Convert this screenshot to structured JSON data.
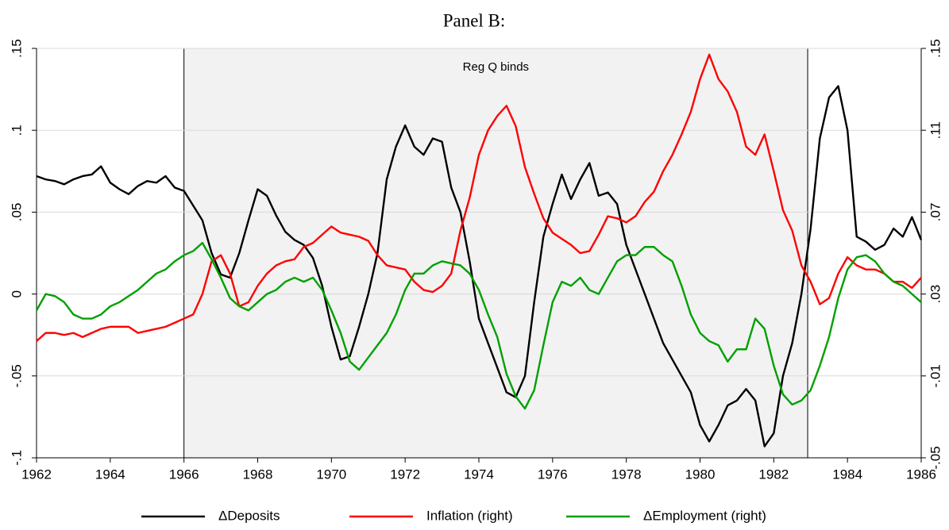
{
  "chart_data": {
    "type": "line",
    "title": "Panel B:",
    "x": [
      1962,
      1962.25,
      1962.5,
      1962.75,
      1963,
      1963.25,
      1963.5,
      1963.75,
      1964,
      1964.25,
      1964.5,
      1964.75,
      1965,
      1965.25,
      1965.5,
      1965.75,
      1966,
      1966.25,
      1966.5,
      1966.75,
      1967,
      1967.25,
      1967.5,
      1967.75,
      1968,
      1968.25,
      1968.5,
      1968.75,
      1969,
      1969.25,
      1969.5,
      1969.75,
      1970,
      1970.25,
      1970.5,
      1970.75,
      1971,
      1971.25,
      1971.5,
      1971.75,
      1972,
      1972.25,
      1972.5,
      1972.75,
      1973,
      1973.25,
      1973.5,
      1973.75,
      1974,
      1974.25,
      1974.5,
      1974.75,
      1975,
      1975.25,
      1975.5,
      1975.75,
      1976,
      1976.25,
      1976.5,
      1976.75,
      1977,
      1977.25,
      1977.5,
      1977.75,
      1978,
      1978.25,
      1978.5,
      1978.75,
      1979,
      1979.25,
      1979.5,
      1979.75,
      1980,
      1980.25,
      1980.5,
      1980.75,
      1981,
      1981.25,
      1981.5,
      1981.75,
      1982,
      1982.25,
      1982.5,
      1982.75,
      1983,
      1983.25,
      1983.5,
      1983.75,
      1984,
      1984.25,
      1984.5,
      1984.75,
      1985,
      1985.25,
      1985.5,
      1985.75,
      1986
    ],
    "series": [
      {
        "name": "ΔDeposits",
        "color": "#000000",
        "axis": "y",
        "values": [
          0.072,
          0.07,
          0.069,
          0.067,
          0.07,
          0.072,
          0.073,
          0.078,
          0.068,
          0.064,
          0.061,
          0.066,
          0.069,
          0.068,
          0.072,
          0.065,
          0.063,
          0.054,
          0.045,
          0.025,
          0.012,
          0.01,
          0.025,
          0.045,
          0.064,
          0.06,
          0.048,
          0.038,
          0.033,
          0.03,
          0.022,
          0.005,
          -0.02,
          -0.04,
          -0.038,
          -0.02,
          0,
          0.025,
          0.07,
          0.09,
          0.103,
          0.09,
          0.085,
          0.095,
          0.093,
          0.065,
          0.05,
          0.02,
          -0.015,
          -0.03,
          -0.045,
          -0.06,
          -0.063,
          -0.05,
          -0.005,
          0.035,
          0.055,
          0.073,
          0.058,
          0.07,
          0.08,
          0.06,
          0.062,
          0.055,
          0.03,
          0.015,
          0,
          -0.015,
          -0.03,
          -0.04,
          -0.05,
          -0.06,
          -0.08,
          -0.09,
          -0.08,
          -0.068,
          -0.065,
          -0.058,
          -0.065,
          -0.093,
          -0.085,
          -0.05,
          -0.03,
          0,
          0.04,
          0.095,
          0.12,
          0.127,
          0.1,
          0.035,
          0.032,
          0.027,
          0.03,
          0.04,
          0.035,
          0.047,
          0.033
        ]
      },
      {
        "name": "Inflation (right)",
        "color": "#ff0000",
        "axis": "y2",
        "values": [
          0.007,
          0.011,
          0.011,
          0.01,
          0.011,
          0.009,
          0.011,
          0.013,
          0.014,
          0.014,
          0.014,
          0.011,
          0.012,
          0.013,
          0.014,
          0.016,
          0.018,
          0.02,
          0.03,
          0.046,
          0.049,
          0.04,
          0.024,
          0.026,
          0.034,
          0.04,
          0.044,
          0.046,
          0.047,
          0.053,
          0.055,
          0.059,
          0.063,
          0.06,
          0.059,
          0.058,
          0.056,
          0.049,
          0.044,
          0.043,
          0.042,
          0.036,
          0.032,
          0.031,
          0.034,
          0.04,
          0.061,
          0.077,
          0.098,
          0.11,
          0.117,
          0.122,
          0.112,
          0.092,
          0.079,
          0.067,
          0.06,
          0.057,
          0.054,
          0.05,
          0.051,
          0.059,
          0.068,
          0.067,
          0.065,
          0.068,
          0.075,
          0.08,
          0.09,
          0.098,
          0.108,
          0.119,
          0.135,
          0.147,
          0.135,
          0.129,
          0.119,
          0.102,
          0.098,
          0.108,
          0.09,
          0.071,
          0.061,
          0.044,
          0.036,
          0.025,
          0.028,
          0.04,
          0.048,
          0.044,
          0.042,
          0.042,
          0.04,
          0.036,
          0.036,
          0.033,
          0.038
        ]
      },
      {
        "name": "ΔEmployment (right)",
        "color": "#00a000",
        "axis": "y2",
        "values": [
          0.022,
          0.03,
          0.029,
          0.026,
          0.02,
          0.018,
          0.018,
          0.02,
          0.024,
          0.026,
          0.029,
          0.032,
          0.036,
          0.04,
          0.042,
          0.046,
          0.049,
          0.051,
          0.055,
          0.047,
          0.038,
          0.028,
          0.024,
          0.022,
          0.026,
          0.03,
          0.032,
          0.036,
          0.038,
          0.036,
          0.038,
          0.032,
          0.022,
          0.011,
          -0.003,
          -0.007,
          -0.001,
          0.005,
          0.011,
          0.02,
          0.032,
          0.04,
          0.04,
          0.044,
          0.046,
          0.045,
          0.044,
          0.04,
          0.032,
          0.02,
          0.009,
          -0.009,
          -0.02,
          -0.026,
          -0.017,
          0.005,
          0.026,
          0.036,
          0.034,
          0.038,
          0.032,
          0.03,
          0.038,
          0.046,
          0.049,
          0.049,
          0.053,
          0.053,
          0.049,
          0.046,
          0.034,
          0.02,
          0.011,
          0.007,
          0.005,
          -0.003,
          0.003,
          0.003,
          0.018,
          0.013,
          -0.005,
          -0.019,
          -0.024,
          -0.022,
          -0.017,
          -0.005,
          0.009,
          0.028,
          0.042,
          0.048,
          0.049,
          0.046,
          0.04,
          0.036,
          0.034,
          0.03,
          0.026
        ]
      }
    ],
    "xlim": [
      1962,
      1986
    ],
    "xticks": [
      1962,
      1964,
      1966,
      1968,
      1970,
      1972,
      1974,
      1976,
      1978,
      1980,
      1982,
      1984,
      1986
    ],
    "ylim": [
      -0.1,
      0.15
    ],
    "yticks": [
      {
        "value": -0.1,
        "label": "-.1"
      },
      {
        "value": -0.05,
        "label": "-.05"
      },
      0,
      {
        "value": 0.05,
        "label": ".05"
      },
      {
        "value": 0.1,
        "label": ".1"
      },
      {
        "value": 0.15,
        "label": ".15"
      }
    ],
    "y2lim": [
      -0.05,
      0.15
    ],
    "y2ticks": [
      {
        "value": -0.05,
        "label": "-.05"
      },
      {
        "value": -0.01,
        "label": "-.01"
      },
      {
        "value": 0.03,
        "label": ".03"
      },
      {
        "value": 0.07,
        "label": ".07"
      },
      {
        "value": 0.11,
        "label": ".11"
      },
      {
        "value": 0.15,
        "label": ".15"
      }
    ],
    "grid": true,
    "legend": "bottom",
    "shade": {
      "start": 1966,
      "end": 1982.92,
      "label": "Reg Q binds",
      "color": "#f2f2f2"
    }
  }
}
